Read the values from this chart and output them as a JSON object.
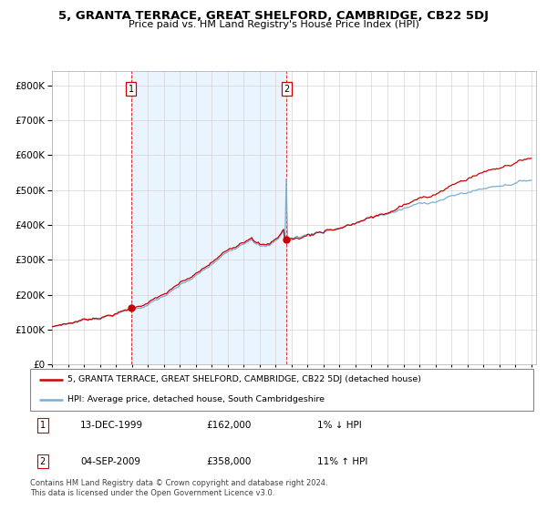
{
  "title": "5, GRANTA TERRACE, GREAT SHELFORD, CAMBRIDGE, CB22 5DJ",
  "subtitle": "Price paid vs. HM Land Registry's House Price Index (HPI)",
  "legend_line1": "5, GRANTA TERRACE, GREAT SHELFORD, CAMBRIDGE, CB22 5DJ (detached house)",
  "legend_line2": "HPI: Average price, detached house, South Cambridgeshire",
  "sale1_date": "13-DEC-1999",
  "sale1_price": "£162,000",
  "sale1_hpi": "1% ↓ HPI",
  "sale2_date": "04-SEP-2009",
  "sale2_price": "£358,000",
  "sale2_hpi": "11% ↑ HPI",
  "footer": "Contains HM Land Registry data © Crown copyright and database right 2024.\nThis data is licensed under the Open Government Licence v3.0.",
  "red_color": "#cc0000",
  "blue_color": "#7aafcf",
  "bg_shade_color": "#ddeeff",
  "sale1_year": 1999.96,
  "sale2_year": 2009.67,
  "sale1_value": 162000,
  "sale2_value": 358000,
  "ymax": 800000,
  "xmin": 1995,
  "xmax": 2025
}
